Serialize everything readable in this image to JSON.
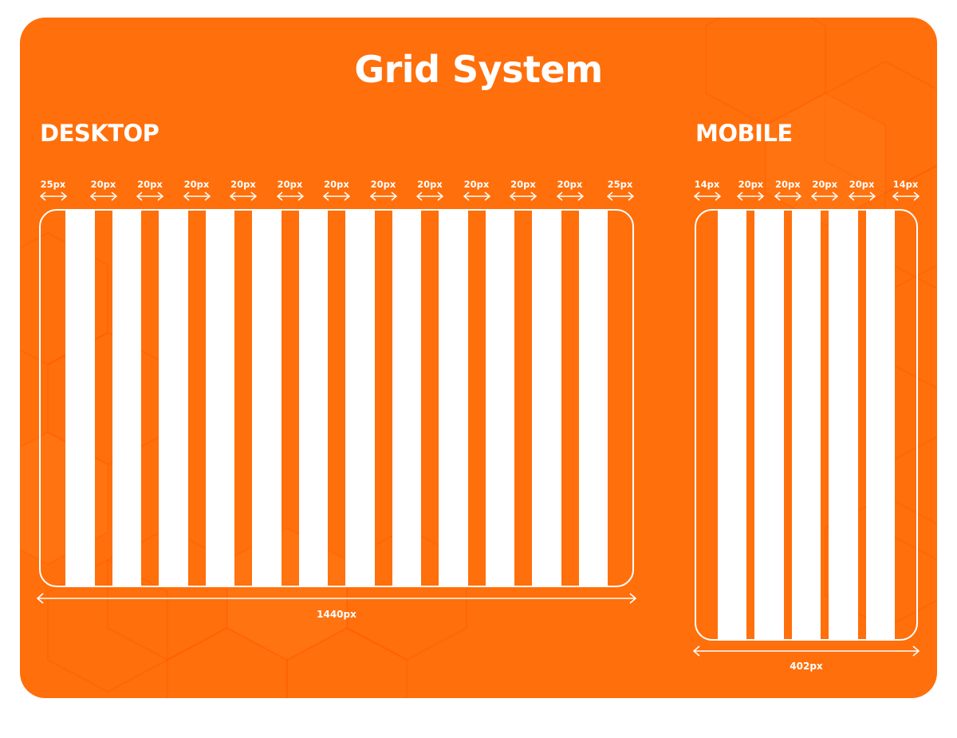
{
  "title": "Grid System",
  "colors": {
    "background": "#ff6f0b",
    "foreground": "#ffffff",
    "page": "#ffffff"
  },
  "desktop": {
    "label": "DESKTOP",
    "margin_label": "25px",
    "gutter_label": "20px",
    "gutter_labels": [
      "25px",
      "20px",
      "20px",
      "20px",
      "20px",
      "20px",
      "20px",
      "20px",
      "20px",
      "20px",
      "20px",
      "20px",
      "25px"
    ],
    "columns": 12,
    "width_label": "1440px"
  },
  "mobile": {
    "label": "MOBILE",
    "margin_label": "14px",
    "gutter_label": "20px",
    "gutter_labels": [
      "14px",
      "20px",
      "20px",
      "20px",
      "20px",
      "14px"
    ],
    "columns": 5,
    "width_label": "402px"
  }
}
